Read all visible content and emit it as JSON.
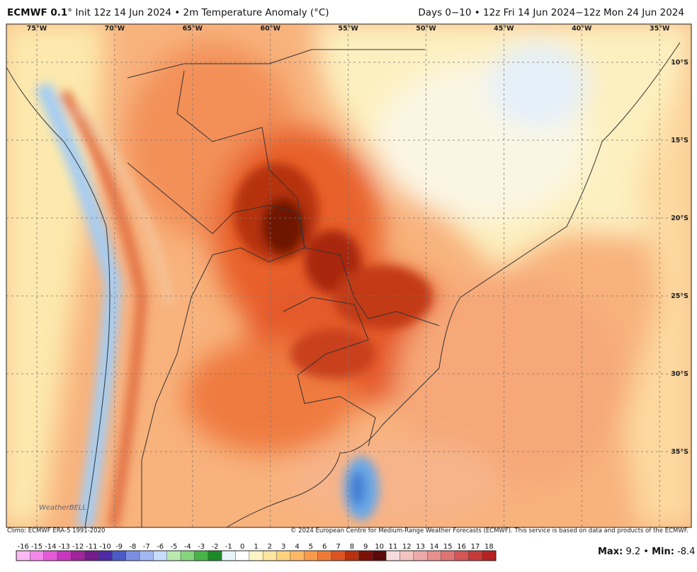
{
  "header": {
    "model": "ECMWF 0.1",
    "left_text": "° Init 12z 14 Jun 2024 • 2m Temperature Anomaly (°C)",
    "right_text": "Days 0−10 • 12z Fri 14 Jun 2024−12z Mon 24 Jun 2024"
  },
  "map": {
    "lon_labels": [
      "75°W",
      "70°W",
      "65°W",
      "60°W",
      "55°W",
      "50°W",
      "45°W",
      "40°W",
      "35°W"
    ],
    "lat_labels": [
      "10°S",
      "15°S",
      "20°S",
      "25°S",
      "30°S",
      "35°S"
    ],
    "logo": "WeatherBELL"
  },
  "footer": {
    "climo": "Climo: ECMWF ERA-5 1991-2020",
    "copyright": "© 2024 European Centre for Medium-Range Weather Forecasts (ECMWF). This service is based on data and products of the ECMWF."
  },
  "colorbar": {
    "ticks": [
      -16,
      -15,
      -14,
      -13,
      -12,
      -11,
      -10,
      -9,
      -8,
      -7,
      -6,
      -5,
      -4,
      -3,
      -2,
      -1,
      0,
      1,
      2,
      3,
      4,
      5,
      6,
      7,
      8,
      9,
      10,
      11,
      12,
      13,
      14,
      15,
      16,
      17,
      18
    ],
    "colors": [
      "#fbb8f2",
      "#f38ae8",
      "#e45ad8",
      "#c836bf",
      "#a0249a",
      "#741c8c",
      "#4c2aa6",
      "#4a5ac8",
      "#7a8fe4",
      "#a2b8f4",
      "#c8dcfc",
      "#b8eab0",
      "#86d47e",
      "#48b448",
      "#1c8a28",
      "#e6f4fa",
      "#ffffff",
      "#fff4c4",
      "#ffe6a0",
      "#ffd27e",
      "#ffb866",
      "#fa9a4c",
      "#f07a34",
      "#dc5422",
      "#b8300e",
      "#7c1006",
      "#5a0a0a",
      "#f6dcdc",
      "#f2c4c2",
      "#eeaaa8",
      "#e89090",
      "#e07474",
      "#d45656",
      "#c63a3a",
      "#b42222"
    ]
  },
  "stats": {
    "max_label": "Max:",
    "max": 9.2,
    "separator": "•",
    "min_label": "Min:",
    "min": -8.4
  }
}
